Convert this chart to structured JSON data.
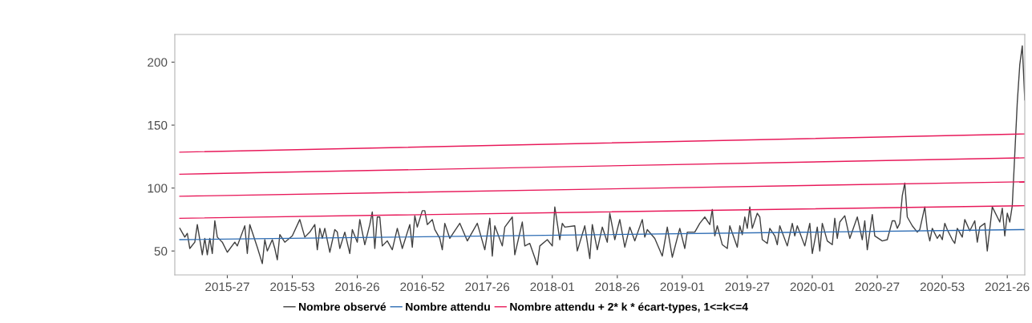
{
  "chart_data": {
    "type": "line",
    "ylim": [
      31,
      222
    ],
    "yticks": [
      50,
      100,
      150,
      200
    ],
    "grid": false,
    "legend": "bottom",
    "marker": "none",
    "line_style": "solid",
    "categories": [
      null,
      null,
      null,
      null,
      null,
      null,
      null,
      null,
      null,
      null,
      null,
      null,
      null,
      null,
      null,
      null,
      null,
      null,
      null,
      "2015-27",
      null,
      null,
      null,
      null,
      null,
      null,
      null,
      null,
      null,
      null,
      null,
      null,
      null,
      null,
      null,
      null,
      null,
      null,
      null,
      null,
      null,
      null,
      null,
      null,
      null,
      "2015-53",
      null,
      null,
      null,
      null,
      null,
      null,
      null,
      null,
      null,
      null,
      null,
      null,
      null,
      null,
      null,
      null,
      null,
      null,
      null,
      null,
      null,
      null,
      null,
      null,
      null,
      "2016-26",
      null,
      null,
      null,
      null,
      null,
      null,
      null,
      null,
      null,
      null,
      null,
      null,
      null,
      null,
      null,
      null,
      null,
      null,
      null,
      null,
      null,
      null,
      null,
      null,
      null,
      "2016-52",
      null,
      null,
      null,
      null,
      null,
      null,
      null,
      null,
      null,
      null,
      null,
      null,
      null,
      null,
      null,
      null,
      null,
      null,
      null,
      null,
      null,
      null,
      null,
      null,
      null,
      "2017-26",
      null,
      null,
      null,
      null,
      null,
      null,
      null,
      null,
      null,
      null,
      null,
      null,
      null,
      null,
      null,
      null,
      null,
      null,
      null,
      null,
      null,
      null,
      null,
      null,
      null,
      "2018-01",
      null,
      null,
      null,
      null,
      null,
      null,
      null,
      null,
      null,
      null,
      null,
      null,
      null,
      null,
      null,
      null,
      null,
      null,
      null,
      null,
      null,
      null,
      null,
      null,
      null,
      "2018-26",
      null,
      null,
      null,
      null,
      null,
      null,
      null,
      null,
      null,
      null,
      null,
      null,
      null,
      null,
      null,
      null,
      null,
      null,
      null,
      null,
      null,
      null,
      null,
      null,
      null,
      "2019-01",
      null,
      null,
      null,
      null,
      null,
      null,
      null,
      null,
      null,
      null,
      null,
      null,
      null,
      null,
      null,
      null,
      null,
      null,
      null,
      null,
      null,
      null,
      null,
      null,
      null,
      "2019-27",
      null,
      null,
      null,
      null,
      null,
      null,
      null,
      null,
      null,
      null,
      null,
      null,
      null,
      null,
      null,
      null,
      null,
      null,
      null,
      null,
      null,
      null,
      null,
      null,
      null,
      "2020-01",
      null,
      null,
      null,
      null,
      null,
      null,
      null,
      null,
      null,
      null,
      null,
      null,
      null,
      null,
      null,
      null,
      null,
      null,
      null,
      null,
      null,
      null,
      null,
      null,
      null,
      "2020-27",
      null,
      null,
      null,
      null,
      null,
      null,
      null,
      null,
      null,
      null,
      null,
      null,
      null,
      null,
      null,
      null,
      null,
      null,
      null,
      null,
      null,
      null,
      null,
      null,
      null,
      "2020-53",
      null,
      null,
      null,
      null,
      null,
      null,
      null,
      null,
      null,
      null,
      null,
      null,
      null,
      null,
      null,
      null,
      null,
      null,
      null,
      null,
      null,
      null,
      null,
      null,
      null,
      "2021-26",
      null,
      null,
      null,
      null,
      null,
      null,
      null
    ],
    "series": [
      {
        "name": "Nombre observé",
        "color": "#404040",
        "values": [
          68,
          null,
          61,
          64,
          52,
          null,
          57,
          71,
          null,
          47,
          60,
          47,
          60,
          48,
          74,
          61,
          null,
          57,
          null,
          49,
          null,
          null,
          57,
          54,
          null,
          null,
          70,
          48,
          71,
          null,
          null,
          53,
          null,
          40,
          59,
          50,
          null,
          59,
          52,
          43,
          63,
          null,
          57,
          null,
          null,
          62,
          null,
          null,
          75,
          null,
          61,
          null,
          65,
          null,
          71,
          51,
          68,
          60,
          68,
          null,
          49,
          null,
          67,
          65,
          52,
          null,
          65,
          null,
          48,
          67,
          null,
          57,
          75,
          null,
          55,
          null,
          71,
          81,
          52,
          77,
          77,
          54,
          null,
          58,
          null,
          51,
          null,
          68,
          null,
          52,
          null,
          null,
          71,
          53,
          78,
          69,
          null,
          82,
          82,
          71,
          null,
          75,
          67,
          null,
          60,
          51,
          72,
          null,
          60,
          63,
          null,
          null,
          72,
          null,
          null,
          58,
          null,
          null,
          null,
          72,
          null,
          null,
          51,
          null,
          76,
          46,
          70,
          null,
          null,
          54,
          69,
          null,
          null,
          77,
          47,
          null,
          null,
          73,
          54,
          null,
          56,
          null,
          null,
          39,
          54,
          null,
          null,
          59,
          null,
          54,
          85,
          null,
          59,
          72,
          69,
          null,
          null,
          null,
          70,
          50,
          null,
          null,
          70,
          null,
          44,
          71,
          null,
          51,
          null,
          69,
          null,
          57,
          80,
          null,
          59,
          null,
          75,
          null,
          53,
          null,
          69,
          null,
          58,
          null,
          null,
          75,
          61,
          67,
          null,
          null,
          60,
          null,
          null,
          46,
          null,
          69,
          null,
          45,
          null,
          null,
          68,
          null,
          52,
          65,
          null,
          null,
          65,
          null,
          72,
          null,
          77,
          null,
          71,
          83,
          62,
          70,
          null,
          55,
          null,
          52,
          70,
          null,
          null,
          53,
          70,
          63,
          77,
          68,
          85,
          68,
          null,
          80,
          77,
          59,
          null,
          56,
          68,
          null,
          62,
          55,
          70,
          null,
          null,
          54,
          null,
          72,
          62,
          70,
          null,
          null,
          54,
          null,
          72,
          48,
          null,
          69,
          50,
          72,
          null,
          58,
          null,
          55,
          76,
          60,
          73,
          null,
          78,
          null,
          60,
          null,
          null,
          77,
          null,
          59,
          74,
          51,
          null,
          79,
          62,
          null,
          null,
          58,
          null,
          59,
          null,
          74,
          74,
          68,
          72,
          94,
          104,
          77,
          null,
          70,
          null,
          65,
          67,
          null,
          85,
          67,
          58,
          68,
          null,
          60,
          63,
          59,
          72,
          67,
          null,
          59,
          56,
          68,
          null,
          61,
          75,
          null,
          66,
          null,
          74,
          57,
          69,
          null,
          72,
          50,
          null,
          85,
          null,
          null,
          73,
          84,
          62,
          80,
          73,
          86,
          null,
          168,
          198,
          213,
          170
        ]
      },
      {
        "name": "Nombre attendu",
        "color": "#2e6db4",
        "values": [
          59,
          null,
          null,
          null,
          null,
          null,
          null,
          null,
          null,
          null,
          null,
          null,
          null,
          null,
          null,
          null,
          null,
          null,
          null,
          null,
          null,
          null,
          null,
          null,
          null,
          null,
          null,
          null,
          null,
          null,
          null,
          null,
          null,
          null,
          null,
          null,
          null,
          null,
          null,
          null,
          null,
          null,
          null,
          null,
          null,
          null,
          null,
          null,
          null,
          null,
          null,
          null,
          null,
          null,
          null,
          null,
          null,
          null,
          null,
          null,
          null,
          null,
          null,
          null,
          null,
          null,
          null,
          null,
          null,
          null,
          null,
          null,
          null,
          null,
          null,
          null,
          null,
          null,
          null,
          null,
          null,
          null,
          null,
          null,
          null,
          null,
          null,
          null,
          null,
          null,
          null,
          null,
          null,
          null,
          null,
          null,
          null,
          null,
          null,
          null,
          null,
          null,
          null,
          null,
          null,
          null,
          null,
          null,
          null,
          null,
          null,
          null,
          null,
          null,
          null,
          null,
          null,
          null,
          null,
          null,
          null,
          null,
          null,
          null,
          null,
          null,
          null,
          null,
          null,
          null,
          null,
          null,
          null,
          null,
          null,
          null,
          null,
          null,
          null,
          null,
          null,
          null,
          null,
          null,
          null,
          null,
          null,
          null,
          null,
          null,
          null,
          null,
          null,
          null,
          null,
          null,
          null,
          null,
          null,
          null,
          null,
          null,
          null,
          null,
          null,
          null,
          null,
          null,
          null,
          null,
          null,
          null,
          null,
          null,
          null,
          null,
          null,
          null,
          null,
          null,
          null,
          null,
          null,
          null,
          null,
          null,
          null,
          null,
          null,
          null,
          null,
          null,
          null,
          null,
          null,
          null,
          null,
          null,
          null,
          null,
          null,
          null,
          null,
          null,
          null,
          null,
          null,
          null,
          null,
          null,
          null,
          null,
          null,
          null,
          null,
          null,
          null,
          null,
          null,
          null,
          null,
          null,
          null,
          null,
          null,
          null,
          null,
          null,
          null,
          null,
          null,
          null,
          null,
          null,
          null,
          null,
          null,
          null,
          null,
          null,
          null,
          null,
          null,
          null,
          null,
          null,
          null,
          null,
          null,
          null,
          null,
          null,
          null,
          null,
          null,
          null,
          null,
          null,
          null,
          null,
          null,
          null,
          null,
          null,
          null,
          null,
          null,
          null,
          null,
          null,
          null,
          null,
          null,
          null,
          null,
          null,
          null,
          null,
          null,
          null,
          null,
          null,
          null,
          null,
          null,
          null,
          null,
          null,
          null,
          null,
          null,
          null,
          null,
          null,
          null,
          null,
          null,
          null,
          null,
          null,
          null,
          null,
          null,
          null,
          null,
          null,
          null,
          null,
          null,
          null,
          null,
          null,
          null,
          null,
          null,
          null,
          null,
          null,
          null,
          null,
          null,
          null,
          null,
          null,
          null,
          null,
          null,
          null,
          null,
          null,
          null,
          null,
          null,
          null,
          null,
          null,
          null,
          null,
          67
        ]
      },
      {
        "name": "Nombre attendu + 2* k * écart-types, 1<=k<=4",
        "color": "#e8195a",
        "values": [
          76,
          null,
          null,
          null,
          null,
          null,
          null,
          null,
          null,
          null,
          null,
          null,
          null,
          null,
          null,
          null,
          null,
          null,
          null,
          null,
          null,
          null,
          null,
          null,
          null,
          null,
          null,
          null,
          null,
          null,
          null,
          null,
          null,
          null,
          null,
          null,
          null,
          null,
          null,
          null,
          null,
          null,
          null,
          null,
          null,
          null,
          null,
          null,
          null,
          null,
          null,
          null,
          null,
          null,
          null,
          null,
          null,
          null,
          null,
          null,
          null,
          null,
          null,
          null,
          null,
          null,
          null,
          null,
          null,
          null,
          null,
          null,
          null,
          null,
          null,
          null,
          null,
          null,
          null,
          null,
          null,
          null,
          null,
          null,
          null,
          null,
          null,
          null,
          null,
          null,
          null,
          null,
          null,
          null,
          null,
          null,
          null,
          null,
          null,
          null,
          null,
          null,
          null,
          null,
          null,
          null,
          null,
          null,
          null,
          null,
          null,
          null,
          null,
          null,
          null,
          null,
          null,
          null,
          null,
          null,
          null,
          null,
          null,
          null,
          null,
          null,
          null,
          null,
          null,
          null,
          null,
          null,
          null,
          null,
          null,
          null,
          null,
          null,
          null,
          null,
          null,
          null,
          null,
          null,
          null,
          null,
          null,
          null,
          null,
          null,
          null,
          null,
          null,
          null,
          null,
          null,
          null,
          null,
          null,
          null,
          null,
          null,
          null,
          null,
          null,
          null,
          null,
          null,
          null,
          null,
          null,
          null,
          null,
          null,
          null,
          null,
          null,
          null,
          null,
          null,
          null,
          null,
          null,
          null,
          null,
          null,
          null,
          null,
          null,
          null,
          null,
          null,
          null,
          null,
          null,
          null,
          null,
          null,
          null,
          null,
          null,
          null,
          null,
          null,
          null,
          null,
          null,
          null,
          null,
          null,
          null,
          null,
          null,
          null,
          null,
          null,
          null,
          null,
          null,
          null,
          null,
          null,
          null,
          null,
          null,
          null,
          null,
          null,
          null,
          null,
          null,
          null,
          null,
          null,
          null,
          null,
          null,
          null,
          null,
          null,
          null,
          null,
          null,
          null,
          null,
          null,
          null,
          null,
          null,
          null,
          null,
          null,
          null,
          null,
          null,
          null,
          null,
          null,
          null,
          null,
          null,
          null,
          null,
          null,
          null,
          null,
          null,
          null,
          null,
          null,
          null,
          null,
          null,
          null,
          null,
          null,
          null,
          null,
          null,
          null,
          null,
          null,
          null,
          null,
          null,
          null,
          null,
          null,
          null,
          null,
          null,
          null,
          null,
          null,
          null,
          null,
          null,
          null,
          null,
          null,
          null,
          null,
          null,
          null,
          null,
          null,
          null,
          null,
          null,
          null,
          null,
          null,
          null,
          null,
          null,
          null,
          null,
          null,
          null,
          null,
          null,
          null,
          null,
          null,
          null,
          null,
          null,
          null,
          null,
          null,
          null,
          null,
          null,
          null,
          null,
          null,
          null,
          null,
          86
        ]
      },
      {
        "color": "#e8195a",
        "values": [
          93.5,
          null,
          null,
          null,
          null,
          null,
          null,
          null,
          null,
          null,
          null,
          null,
          null,
          null,
          null,
          null,
          null,
          null,
          null,
          null,
          null,
          null,
          null,
          null,
          null,
          null,
          null,
          null,
          null,
          null,
          null,
          null,
          null,
          null,
          null,
          null,
          null,
          null,
          null,
          null,
          null,
          null,
          null,
          null,
          null,
          null,
          null,
          null,
          null,
          null,
          null,
          null,
          null,
          null,
          null,
          null,
          null,
          null,
          null,
          null,
          null,
          null,
          null,
          null,
          null,
          null,
          null,
          null,
          null,
          null,
          null,
          null,
          null,
          null,
          null,
          null,
          null,
          null,
          null,
          null,
          null,
          null,
          null,
          null,
          null,
          null,
          null,
          null,
          null,
          null,
          null,
          null,
          null,
          null,
          null,
          null,
          null,
          null,
          null,
          null,
          null,
          null,
          null,
          null,
          null,
          null,
          null,
          null,
          null,
          null,
          null,
          null,
          null,
          null,
          null,
          null,
          null,
          null,
          null,
          null,
          null,
          null,
          null,
          null,
          null,
          null,
          null,
          null,
          null,
          null,
          null,
          null,
          null,
          null,
          null,
          null,
          null,
          null,
          null,
          null,
          null,
          null,
          null,
          null,
          null,
          null,
          null,
          null,
          null,
          null,
          null,
          null,
          null,
          null,
          null,
          null,
          null,
          null,
          null,
          null,
          null,
          null,
          null,
          null,
          null,
          null,
          null,
          null,
          null,
          null,
          null,
          null,
          null,
          null,
          null,
          null,
          null,
          null,
          null,
          null,
          null,
          null,
          null,
          null,
          null,
          null,
          null,
          null,
          null,
          null,
          null,
          null,
          null,
          null,
          null,
          null,
          null,
          null,
          null,
          null,
          null,
          null,
          null,
          null,
          null,
          null,
          null,
          null,
          null,
          null,
          null,
          null,
          null,
          null,
          null,
          null,
          null,
          null,
          null,
          null,
          null,
          null,
          null,
          null,
          null,
          null,
          null,
          null,
          null,
          null,
          null,
          null,
          null,
          null,
          null,
          null,
          null,
          null,
          null,
          null,
          null,
          null,
          null,
          null,
          null,
          null,
          null,
          null,
          null,
          null,
          null,
          null,
          null,
          null,
          null,
          null,
          null,
          null,
          null,
          null,
          null,
          null,
          null,
          null,
          null,
          null,
          null,
          null,
          null,
          null,
          null,
          null,
          null,
          null,
          null,
          null,
          null,
          null,
          null,
          null,
          null,
          null,
          null,
          null,
          null,
          null,
          null,
          null,
          null,
          null,
          null,
          null,
          null,
          null,
          null,
          null,
          null,
          null,
          null,
          null,
          null,
          null,
          null,
          null,
          null,
          null,
          null,
          null,
          null,
          null,
          null,
          null,
          null,
          null,
          null,
          null,
          null,
          null,
          null,
          null,
          null,
          null,
          null,
          null,
          null,
          null,
          null,
          null,
          null,
          null,
          null,
          null,
          null,
          null,
          null,
          null,
          null,
          null,
          105
        ]
      },
      {
        "color": "#e8195a",
        "values": [
          111,
          null,
          null,
          null,
          null,
          null,
          null,
          null,
          null,
          null,
          null,
          null,
          null,
          null,
          null,
          null,
          null,
          null,
          null,
          null,
          null,
          null,
          null,
          null,
          null,
          null,
          null,
          null,
          null,
          null,
          null,
          null,
          null,
          null,
          null,
          null,
          null,
          null,
          null,
          null,
          null,
          null,
          null,
          null,
          null,
          null,
          null,
          null,
          null,
          null,
          null,
          null,
          null,
          null,
          null,
          null,
          null,
          null,
          null,
          null,
          null,
          null,
          null,
          null,
          null,
          null,
          null,
          null,
          null,
          null,
          null,
          null,
          null,
          null,
          null,
          null,
          null,
          null,
          null,
          null,
          null,
          null,
          null,
          null,
          null,
          null,
          null,
          null,
          null,
          null,
          null,
          null,
          null,
          null,
          null,
          null,
          null,
          null,
          null,
          null,
          null,
          null,
          null,
          null,
          null,
          null,
          null,
          null,
          null,
          null,
          null,
          null,
          null,
          null,
          null,
          null,
          null,
          null,
          null,
          null,
          null,
          null,
          null,
          null,
          null,
          null,
          null,
          null,
          null,
          null,
          null,
          null,
          null,
          null,
          null,
          null,
          null,
          null,
          null,
          null,
          null,
          null,
          null,
          null,
          null,
          null,
          null,
          null,
          null,
          null,
          null,
          null,
          null,
          null,
          null,
          null,
          null,
          null,
          null,
          null,
          null,
          null,
          null,
          null,
          null,
          null,
          null,
          null,
          null,
          null,
          null,
          null,
          null,
          null,
          null,
          null,
          null,
          null,
          null,
          null,
          null,
          null,
          null,
          null,
          null,
          null,
          null,
          null,
          null,
          null,
          null,
          null,
          null,
          null,
          null,
          null,
          null,
          null,
          null,
          null,
          null,
          null,
          null,
          null,
          null,
          null,
          null,
          null,
          null,
          null,
          null,
          null,
          null,
          null,
          null,
          null,
          null,
          null,
          null,
          null,
          null,
          null,
          null,
          null,
          null,
          null,
          null,
          null,
          null,
          null,
          null,
          null,
          null,
          null,
          null,
          null,
          null,
          null,
          null,
          null,
          null,
          null,
          null,
          null,
          null,
          null,
          null,
          null,
          null,
          null,
          null,
          null,
          null,
          null,
          null,
          null,
          null,
          null,
          null,
          null,
          null,
          null,
          null,
          null,
          null,
          null,
          null,
          null,
          null,
          null,
          null,
          null,
          null,
          null,
          null,
          null,
          null,
          null,
          null,
          null,
          null,
          null,
          null,
          null,
          null,
          null,
          null,
          null,
          null,
          null,
          null,
          null,
          null,
          null,
          null,
          null,
          null,
          null,
          null,
          null,
          null,
          null,
          null,
          null,
          null,
          null,
          null,
          null,
          null,
          null,
          null,
          null,
          null,
          null,
          null,
          null,
          null,
          null,
          null,
          null,
          null,
          null,
          null,
          null,
          null,
          null,
          null,
          null,
          null,
          null,
          null,
          null,
          null,
          null,
          null,
          null,
          null,
          null,
          124
        ]
      },
      {
        "color": "#e8195a",
        "values": [
          128.5,
          null,
          null,
          null,
          null,
          null,
          null,
          null,
          null,
          null,
          null,
          null,
          null,
          null,
          null,
          null,
          null,
          null,
          null,
          null,
          null,
          null,
          null,
          null,
          null,
          null,
          null,
          null,
          null,
          null,
          null,
          null,
          null,
          null,
          null,
          null,
          null,
          null,
          null,
          null,
          null,
          null,
          null,
          null,
          null,
          null,
          null,
          null,
          null,
          null,
          null,
          null,
          null,
          null,
          null,
          null,
          null,
          null,
          null,
          null,
          null,
          null,
          null,
          null,
          null,
          null,
          null,
          null,
          null,
          null,
          null,
          null,
          null,
          null,
          null,
          null,
          null,
          null,
          null,
          null,
          null,
          null,
          null,
          null,
          null,
          null,
          null,
          null,
          null,
          null,
          null,
          null,
          null,
          null,
          null,
          null,
          null,
          null,
          null,
          null,
          null,
          null,
          null,
          null,
          null,
          null,
          null,
          null,
          null,
          null,
          null,
          null,
          null,
          null,
          null,
          null,
          null,
          null,
          null,
          null,
          null,
          null,
          null,
          null,
          null,
          null,
          null,
          null,
          null,
          null,
          null,
          null,
          null,
          null,
          null,
          null,
          null,
          null,
          null,
          null,
          null,
          null,
          null,
          null,
          null,
          null,
          null,
          null,
          null,
          null,
          null,
          null,
          null,
          null,
          null,
          null,
          null,
          null,
          null,
          null,
          null,
          null,
          null,
          null,
          null,
          null,
          null,
          null,
          null,
          null,
          null,
          null,
          null,
          null,
          null,
          null,
          null,
          null,
          null,
          null,
          null,
          null,
          null,
          null,
          null,
          null,
          null,
          null,
          null,
          null,
          null,
          null,
          null,
          null,
          null,
          null,
          null,
          null,
          null,
          null,
          null,
          null,
          null,
          null,
          null,
          null,
          null,
          null,
          null,
          null,
          null,
          null,
          null,
          null,
          null,
          null,
          null,
          null,
          null,
          null,
          null,
          null,
          null,
          null,
          null,
          null,
          null,
          null,
          null,
          null,
          null,
          null,
          null,
          null,
          null,
          null,
          null,
          null,
          null,
          null,
          null,
          null,
          null,
          null,
          null,
          null,
          null,
          null,
          null,
          null,
          null,
          null,
          null,
          null,
          null,
          null,
          null,
          null,
          null,
          null,
          null,
          null,
          null,
          null,
          null,
          null,
          null,
          null,
          null,
          null,
          null,
          null,
          null,
          null,
          null,
          null,
          null,
          null,
          null,
          null,
          null,
          null,
          null,
          null,
          null,
          null,
          null,
          null,
          null,
          null,
          null,
          null,
          null,
          null,
          null,
          null,
          null,
          null,
          null,
          null,
          null,
          null,
          null,
          null,
          null,
          null,
          null,
          null,
          null,
          null,
          null,
          null,
          null,
          null,
          null,
          null,
          null,
          null,
          null,
          null,
          null,
          null,
          null,
          null,
          null,
          null,
          null,
          null,
          null,
          null,
          null,
          null,
          null,
          null,
          null,
          null,
          null,
          null,
          143
        ]
      }
    ]
  }
}
